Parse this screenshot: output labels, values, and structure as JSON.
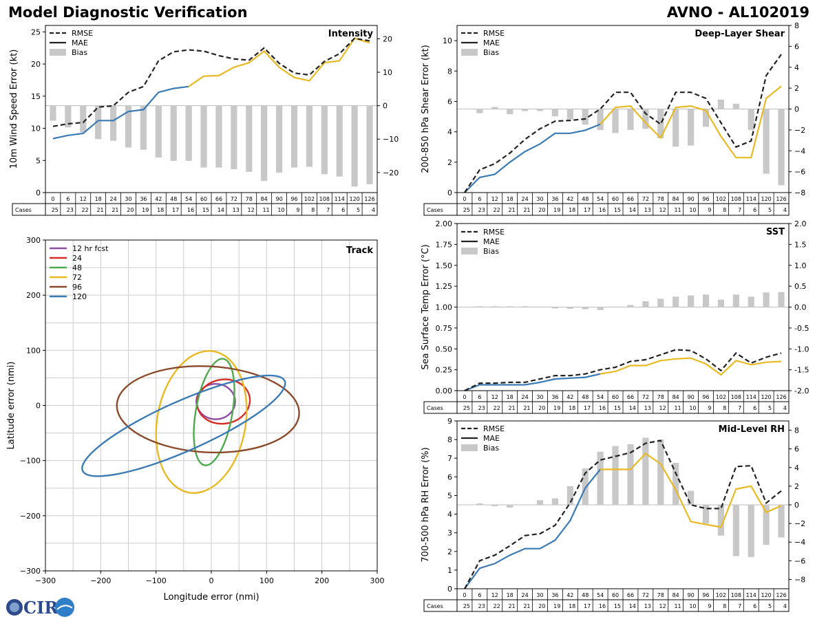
{
  "header": {
    "title": "Model Diagnostic Verification",
    "model_storm": "AVNO - AL102019"
  },
  "logo": {
    "text": "CIRA"
  },
  "table": {
    "cases_label": "Cases",
    "hours": [
      0,
      6,
      12,
      18,
      24,
      30,
      36,
      42,
      48,
      54,
      60,
      66,
      72,
      78,
      84,
      90,
      96,
      102,
      108,
      114,
      120,
      126
    ]
  },
  "colors": {
    "rmse": "#222222",
    "mae_early": "#3a7ab5",
    "mae_late": "#e8b923",
    "bias": "#c8c8c8"
  },
  "chart_data": [
    {
      "id": "intensity",
      "type": "line+bar",
      "title": "Intensity",
      "ylabel": "10m Wind Speed Error (kt)",
      "ylim": [
        0,
        26
      ],
      "yticks": [
        0,
        5,
        10,
        15,
        20,
        25
      ],
      "y2lim": [
        -26,
        24
      ],
      "y2ticks": [
        -20,
        -10,
        0,
        10,
        20
      ],
      "legend": [
        "RMSE",
        "MAE",
        "Bias"
      ],
      "cases": [
        25,
        23,
        22,
        21,
        21,
        20,
        19,
        18,
        17,
        16,
        15,
        14,
        13,
        12,
        11,
        10,
        9,
        8,
        7,
        6,
        5,
        4
      ],
      "rmse": [
        10.3,
        10.7,
        10.9,
        13.3,
        13.5,
        15.6,
        16.5,
        20.5,
        21.9,
        22.2,
        22.0,
        21.3,
        20.8,
        20.6,
        22.5,
        20.1,
        18.6,
        18.3,
        20.4,
        21.6,
        24.0,
        23.6
      ],
      "mae": [
        8.4,
        8.9,
        9.2,
        11.2,
        11.2,
        12.6,
        12.9,
        15.6,
        16.2,
        16.5,
        18.1,
        18.2,
        19.5,
        20.2,
        22.0,
        19.5,
        17.9,
        17.4,
        20.2,
        20.5,
        24.0,
        23.3
      ],
      "bias": [
        -4.5,
        -6.5,
        -8,
        -10,
        -10.5,
        -12.5,
        -13.2,
        -15.5,
        -16.5,
        -16.5,
        -18.5,
        -18.5,
        -19,
        -19.8,
        -22.5,
        -20,
        -18.5,
        -18.3,
        -20.5,
        -21.2,
        -24.2,
        -23.5
      ]
    },
    {
      "id": "shear",
      "type": "line+bar",
      "title": "Deep-Layer Shear",
      "ylabel": "200-850 hPa Shear Error (kt)",
      "ylim": [
        0,
        11
      ],
      "yticks": [
        0,
        2,
        4,
        6,
        8,
        10
      ],
      "y2lim": [
        -8,
        8
      ],
      "y2ticks": [
        -8,
        -6,
        -4,
        -2,
        0,
        2,
        4,
        6,
        8
      ],
      "legend": [
        "RMSE",
        "MAE",
        "Bias"
      ],
      "cases": [
        25,
        23,
        22,
        21,
        21,
        20,
        19,
        18,
        17,
        16,
        15,
        14,
        13,
        12,
        11,
        10,
        9,
        8,
        7,
        6,
        5,
        4
      ],
      "rmse": [
        0,
        1.5,
        1.9,
        2.6,
        3.5,
        4.2,
        4.7,
        4.75,
        4.85,
        5.5,
        6.6,
        6.6,
        5.2,
        4.5,
        6.6,
        6.6,
        6.2,
        4.6,
        3.0,
        3.4,
        7.7,
        9.1
      ],
      "mae": [
        0,
        1.0,
        1.2,
        2.0,
        2.7,
        3.2,
        3.9,
        3.9,
        4.1,
        4.5,
        5.6,
        5.7,
        4.6,
        3.6,
        5.6,
        5.7,
        5.4,
        3.7,
        2.3,
        2.3,
        6.2,
        7.0
      ],
      "bias": [
        0,
        -0.4,
        0.2,
        -0.5,
        -0.2,
        -0.2,
        -0.7,
        -1,
        -1.5,
        -2,
        -2.3,
        -2,
        -1.9,
        -2.8,
        -3.6,
        -3.5,
        -1.7,
        0.9,
        0.5,
        -2,
        -6.2,
        -7.3
      ]
    },
    {
      "id": "sst",
      "type": "line+bar",
      "title": "SST",
      "ylabel": "Sea Surface Temp Error (°C)",
      "ylim": [
        0,
        2.0
      ],
      "yticks": [
        0,
        0.25,
        0.5,
        0.75,
        1.0,
        1.25,
        1.5,
        1.75,
        2.0
      ],
      "ytick_labels": [
        "0.00",
        "0.25",
        "0.50",
        "0.75",
        "1.00",
        "1.25",
        "1.50",
        "1.75",
        "2.00"
      ],
      "y2lim": [
        -2.0,
        2.0
      ],
      "y2ticks": [
        -2,
        -1.5,
        -1,
        -0.5,
        0,
        0.5,
        1,
        1.5,
        2
      ],
      "y2tick_labels": [
        "-2.0",
        "-1.5",
        "-1.0",
        "-0.5",
        "0.0",
        "0.5",
        "1.0",
        "1.5",
        "2.0"
      ],
      "legend": [
        "RMSE",
        "MAE",
        "Bias"
      ],
      "cases": [
        25,
        23,
        22,
        21,
        21,
        20,
        19,
        18,
        17,
        16,
        15,
        14,
        13,
        12,
        11,
        10,
        9,
        8,
        7,
        6,
        5,
        4
      ],
      "rmse": [
        0,
        0.09,
        0.09,
        0.1,
        0.1,
        0.14,
        0.18,
        0.18,
        0.2,
        0.25,
        0.28,
        0.35,
        0.37,
        0.43,
        0.49,
        0.48,
        0.38,
        0.24,
        0.45,
        0.33,
        0.4,
        0.45
      ],
      "mae": [
        0,
        0.07,
        0.07,
        0.07,
        0.07,
        0.1,
        0.14,
        0.15,
        0.16,
        0.2,
        0.23,
        0.3,
        0.3,
        0.36,
        0.38,
        0.39,
        0.32,
        0.19,
        0.36,
        0.31,
        0.34,
        0.35
      ],
      "bias": [
        0,
        0.02,
        0.02,
        0.02,
        0.02,
        0.01,
        -0.03,
        -0.04,
        -0.05,
        -0.07,
        0.01,
        0.05,
        0.14,
        0.2,
        0.25,
        0.28,
        0.3,
        0.18,
        0.3,
        0.25,
        0.35,
        0.36
      ]
    },
    {
      "id": "rh",
      "type": "line+bar",
      "title": "Mid-Level RH",
      "ylabel": "700-500 hPa RH Error (%)",
      "ylim": [
        0,
        9
      ],
      "yticks": [
        0,
        1,
        2,
        3,
        4,
        5,
        6,
        7,
        8,
        9
      ],
      "y2lim": [
        -9,
        9
      ],
      "y2ticks": [
        -8,
        -6,
        -4,
        -2,
        0,
        2,
        4,
        6,
        8
      ],
      "legend": [
        "RMSE",
        "MAE",
        "Bias"
      ],
      "cases": [
        25,
        23,
        22,
        21,
        21,
        20,
        19,
        18,
        17,
        16,
        15,
        14,
        13,
        12,
        11,
        10,
        9,
        8,
        7,
        6,
        5,
        4
      ],
      "rmse": [
        0,
        1.5,
        1.8,
        2.3,
        2.85,
        2.95,
        3.4,
        4.6,
        6.2,
        6.9,
        7.1,
        7.3,
        7.8,
        7.95,
        6.2,
        4.5,
        4.3,
        4.3,
        6.55,
        6.6,
        4.6,
        5.25
      ],
      "mae": [
        0,
        1.1,
        1.35,
        1.8,
        2.15,
        2.15,
        2.6,
        3.65,
        5.4,
        6.4,
        6.4,
        6.4,
        7.25,
        6.7,
        5.3,
        3.6,
        3.45,
        3.3,
        5.35,
        5.5,
        4.1,
        4.45
      ],
      "bias": [
        0,
        0.15,
        -0.15,
        -0.3,
        -0.05,
        0.5,
        0.7,
        2.0,
        3.9,
        5.7,
        6.3,
        6.5,
        7.2,
        7.0,
        4.5,
        1.5,
        -2.0,
        -3.3,
        -5.5,
        -5.6,
        -4.3,
        -3.5
      ]
    },
    {
      "id": "track",
      "type": "ellipses",
      "title": "Track",
      "xlabel": "Longitude error (nmi)",
      "ylabel": "Latitude error (nmi)",
      "xlim": [
        -300,
        300
      ],
      "ylim": [
        -300,
        300
      ],
      "ticks": [
        -300,
        -200,
        -100,
        0,
        100,
        200,
        300
      ],
      "series": [
        {
          "name": "12 hr fcst",
          "color": "#8e4ba5",
          "cx": 8,
          "cy": 7,
          "rx": 35,
          "ry": 32,
          "rot": 0
        },
        {
          "name": "24",
          "color": "#d62b23",
          "cx": 22,
          "cy": 7,
          "rx": 48,
          "ry": 40,
          "rot": 10
        },
        {
          "name": "48",
          "color": "#4caa4c",
          "cx": 5,
          "cy": -12,
          "rx": 33,
          "ry": 98,
          "rot": -10
        },
        {
          "name": "72",
          "color": "#e8b923",
          "cx": -18,
          "cy": -30,
          "rx": 80,
          "ry": 130,
          "rot": -10
        },
        {
          "name": "96",
          "color": "#8b4a2a",
          "cx": -6,
          "cy": -7,
          "rx": 165,
          "ry": 78,
          "rot": -3
        },
        {
          "name": "120",
          "color": "#3a7ab5",
          "cx": -50,
          "cy": -37,
          "rx": 200,
          "ry": 45,
          "rot": 24
        }
      ]
    }
  ]
}
